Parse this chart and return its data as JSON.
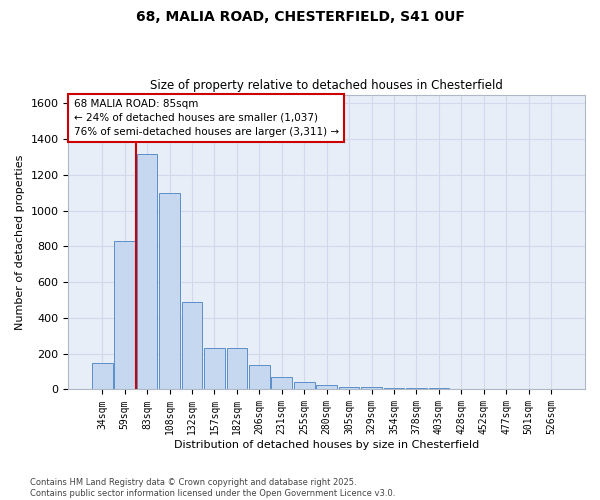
{
  "title_line1": "68, MALIA ROAD, CHESTERFIELD, S41 0UF",
  "title_line2": "Size of property relative to detached houses in Chesterfield",
  "xlabel": "Distribution of detached houses by size in Chesterfield",
  "ylabel": "Number of detached properties",
  "categories": [
    "34sqm",
    "59sqm",
    "83sqm",
    "108sqm",
    "132sqm",
    "157sqm",
    "182sqm",
    "206sqm",
    "231sqm",
    "255sqm",
    "280sqm",
    "305sqm",
    "329sqm",
    "354sqm",
    "378sqm",
    "403sqm",
    "428sqm",
    "452sqm",
    "477sqm",
    "501sqm",
    "526sqm"
  ],
  "values": [
    150,
    830,
    1320,
    1100,
    490,
    230,
    230,
    135,
    70,
    40,
    25,
    15,
    12,
    10,
    10,
    8,
    5,
    2,
    1,
    1,
    0
  ],
  "bar_color": "#c5d8f0",
  "bar_edge_color": "#5b8fc9",
  "grid_color": "#d0daea",
  "plot_bg_color": "#e8eef8",
  "fig_bg_color": "#ffffff",
  "red_line_index": 2,
  "annotation_text": "68 MALIA ROAD: 85sqm\n← 24% of detached houses are smaller (1,037)\n76% of semi-detached houses are larger (3,311) →",
  "annotation_box_color": "#ffffff",
  "annotation_box_edge": "#cc0000",
  "property_line_color": "#cc0000",
  "ylim": [
    0,
    1650
  ],
  "yticks": [
    0,
    200,
    400,
    600,
    800,
    1000,
    1200,
    1400,
    1600
  ],
  "footnote": "Contains HM Land Registry data © Crown copyright and database right 2025.\nContains public sector information licensed under the Open Government Licence v3.0."
}
